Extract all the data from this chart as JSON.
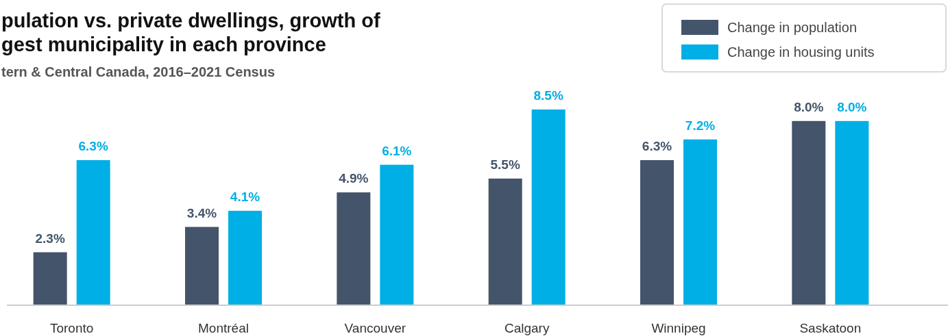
{
  "chart_data": {
    "type": "bar",
    "title": "pulation vs. private dwellings, growth of gest municipality in each province",
    "subtitle": "tern & Central Canada, 2016–2021 Census",
    "categories": [
      "Toronto",
      "Montréal",
      "Vancouver",
      "Calgary",
      "Winnipeg",
      "Saskatoon"
    ],
    "series": [
      {
        "name": "Change in population",
        "color": "#44546a",
        "values": [
          2.3,
          3.4,
          4.9,
          5.5,
          6.3,
          8.0
        ],
        "value_labels": [
          "2.3%",
          "3.4%",
          "4.9%",
          "5.5%",
          "6.3%",
          "8.0%"
        ]
      },
      {
        "name": "Change in housing units",
        "color": "#00afe6",
        "values": [
          6.3,
          4.1,
          6.1,
          8.5,
          7.2,
          8.0
        ],
        "value_labels": [
          "6.3%",
          "4.1%",
          "6.1%",
          "8.5%",
          "7.2%",
          "8.0%"
        ]
      }
    ],
    "legend": "top right"
  }
}
